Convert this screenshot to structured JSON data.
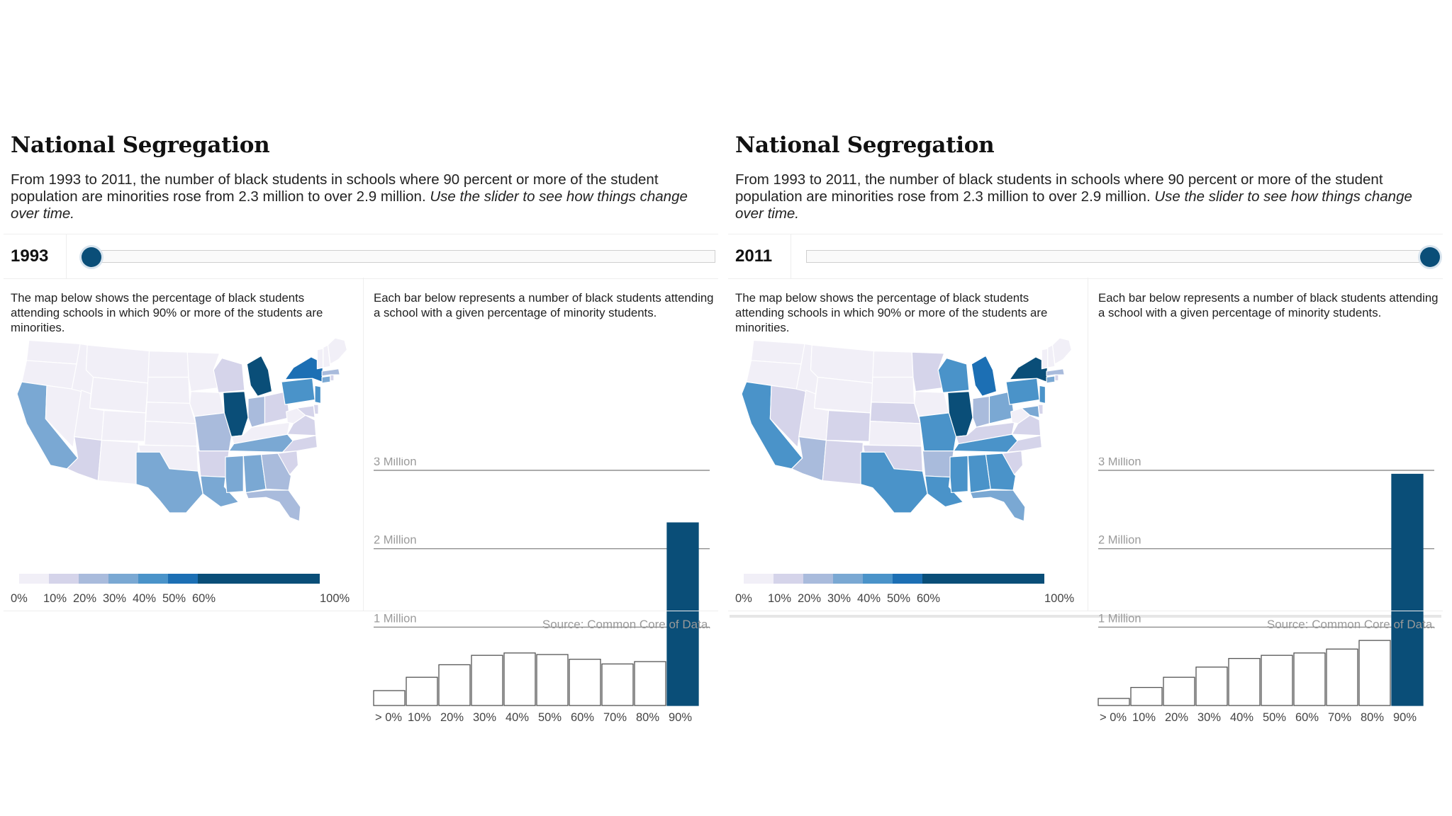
{
  "colors": {
    "accent": "#0a4e78",
    "scale": [
      "#f1eff7",
      "#d5d4ea",
      "#a9bbdc",
      "#7aa8d3",
      "#4a93c9",
      "#1c6fb4",
      "#0a4e78"
    ]
  },
  "panels": [
    {
      "title": "National Segregation",
      "intro_plain": "From 1993 to 2011, the number of black students in schools where 90 percent or more of the student population are minorities rose from 2.3 million to over 2.9 million.",
      "intro_italic": "Use the slider to see how things change over time.",
      "year": "1993",
      "slider": {
        "min": 1993,
        "max": 2011,
        "value": 1993
      },
      "map_description": "The map below shows the percentage of black students attending schools in which 90% or more of the students are minorities.",
      "bar_description": "Each bar below represents a number of black students attending a school with a given percentage of minority students.",
      "source": "Source: Common Core of Data.",
      "map": {
        "shading": {
          "wa": 0,
          "or": 0,
          "ca": 3,
          "nv": 0,
          "id": 0,
          "mt": 0,
          "wy": 0,
          "ut": 0,
          "az": 1,
          "co": 0,
          "nm": 0,
          "nd": 0,
          "sd": 0,
          "ne": 0,
          "ks": 0,
          "ok": 0,
          "tx": 3,
          "mn": 0,
          "ia": 0,
          "mo": 2,
          "ar": 1,
          "la": 3,
          "wi": 1,
          "il": 6,
          "mi": 6,
          "in": 2,
          "oh": 1,
          "ky": 0,
          "tn": 3,
          "ms": 3,
          "al": 3,
          "ga": 2,
          "fl": 2,
          "sc": 1,
          "nc": 1,
          "va": 1,
          "wv": 0,
          "md": 1,
          "de": 1,
          "pa": 4,
          "ny": 5,
          "nj": 4,
          "ct": 3,
          "ri": 1,
          "ma": 2,
          "vt": 0,
          "nh": 0,
          "me": 0
        }
      },
      "chart_data": {
        "type": "bar",
        "categories": [
          "> 0%",
          "10%",
          "20%",
          "30%",
          "40%",
          "50%",
          "60%",
          "70%",
          "80%",
          "90%"
        ],
        "values": [
          0.19,
          0.36,
          0.52,
          0.64,
          0.67,
          0.65,
          0.59,
          0.53,
          0.56,
          2.33
        ],
        "highlight_index": 9,
        "ylim": [
          0,
          3
        ],
        "yticks": [
          {
            "value": 1,
            "label": "1 Million"
          },
          {
            "value": 2,
            "label": "2 Million"
          },
          {
            "value": 3,
            "label": "3 Million"
          }
        ],
        "legend": {
          "labels": [
            "0%",
            "10%",
            "20%",
            "30%",
            "40%",
            "50%",
            "60%",
            "100%"
          ]
        }
      }
    },
    {
      "title": "National Segregation",
      "intro_plain": "From 1993 to 2011, the number of black students in schools where 90 percent or more of the student population are minorities rose from 2.3 million to over 2.9 million.",
      "intro_italic": "Use the slider to see how things change over time.",
      "year": "2011",
      "slider": {
        "min": 1993,
        "max": 2011,
        "value": 2011
      },
      "map_description": "The map below shows the percentage of black students attending schools in which 90% or more of the students are minorities.",
      "bar_description": "Each bar below represents a number of black students attending a school with a given percentage of minority students.",
      "source": "Source: Common Core of Data.",
      "map": {
        "shading": {
          "wa": 0,
          "or": 0,
          "ca": 4,
          "nv": 1,
          "id": 0,
          "mt": 0,
          "wy": 0,
          "ut": 0,
          "az": 2,
          "co": 1,
          "nm": 1,
          "nd": 0,
          "sd": 0,
          "ne": 1,
          "ks": 0,
          "ok": 1,
          "tx": 4,
          "mn": 1,
          "ia": 0,
          "mo": 4,
          "ar": 2,
          "la": 4,
          "wi": 4,
          "il": 6,
          "mi": 5,
          "in": 2,
          "oh": 3,
          "ky": 1,
          "tn": 4,
          "ms": 4,
          "al": 4,
          "ga": 4,
          "fl": 3,
          "sc": 1,
          "nc": 1,
          "va": 1,
          "wv": 0,
          "md": 3,
          "de": 1,
          "pa": 4,
          "ny": 6,
          "nj": 4,
          "ct": 3,
          "ri": 1,
          "ma": 2,
          "vt": 0,
          "nh": 0,
          "me": 0
        }
      },
      "chart_data": {
        "type": "bar",
        "categories": [
          "> 0%",
          "10%",
          "20%",
          "30%",
          "40%",
          "50%",
          "60%",
          "70%",
          "80%",
          "90%"
        ],
        "values": [
          0.09,
          0.23,
          0.36,
          0.49,
          0.6,
          0.64,
          0.67,
          0.72,
          0.83,
          2.95
        ],
        "highlight_index": 9,
        "ylim": [
          0,
          3
        ],
        "yticks": [
          {
            "value": 1,
            "label": "1 Million"
          },
          {
            "value": 2,
            "label": "2 Million"
          },
          {
            "value": 3,
            "label": "3 Million"
          }
        ],
        "legend": {
          "labels": [
            "0%",
            "10%",
            "20%",
            "30%",
            "40%",
            "50%",
            "60%",
            "100%"
          ]
        }
      }
    }
  ]
}
